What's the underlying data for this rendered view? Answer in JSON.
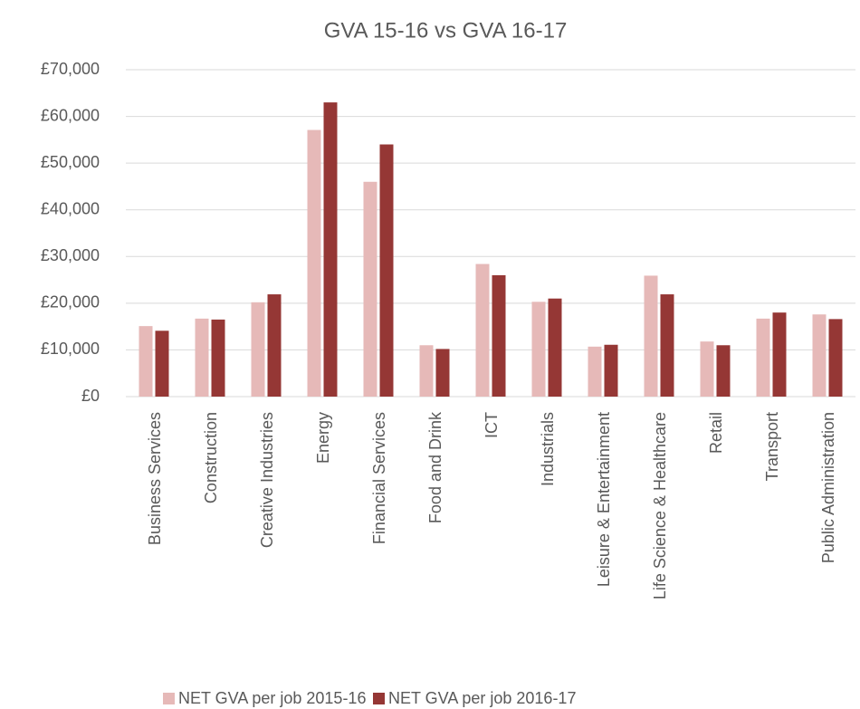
{
  "chart_data": {
    "type": "bar",
    "title": "GVA 15-16 vs GVA 16-17",
    "categories": [
      "Business Services",
      "Construction",
      "Creative Industries",
      "Energy",
      "Financial Services",
      "Food and Drink",
      "ICT",
      "Industrials",
      "Leisure & Entertainment",
      "Life Science & Healthcare",
      "Retail",
      "Transport",
      "Public Administration"
    ],
    "series": [
      {
        "name": "NET GVA per job 2015-16",
        "color": "#e6b9b8",
        "values": [
          15100,
          16700,
          20200,
          57100,
          46000,
          11000,
          28400,
          20300,
          10700,
          25900,
          11800,
          16700,
          17600
        ]
      },
      {
        "name": "NET GVA per job 2016-17",
        "color": "#953735",
        "values": [
          14100,
          16500,
          21900,
          63000,
          54000,
          10200,
          26000,
          21000,
          11100,
          21900,
          11000,
          18000,
          16600
        ]
      }
    ],
    "ylim": [
      0,
      70000
    ],
    "yticks": [
      {
        "value": 0,
        "label": "£0"
      },
      {
        "value": 10000,
        "label": "£10,000"
      },
      {
        "value": 20000,
        "label": "£20,000"
      },
      {
        "value": 30000,
        "label": "£30,000"
      },
      {
        "value": 40000,
        "label": "£40,000"
      },
      {
        "value": 50000,
        "label": "£50,000"
      },
      {
        "value": 60000,
        "label": "£60,000"
      },
      {
        "value": 70000,
        "label": "£70,000"
      }
    ],
    "grid": true,
    "legend": "bottom"
  }
}
